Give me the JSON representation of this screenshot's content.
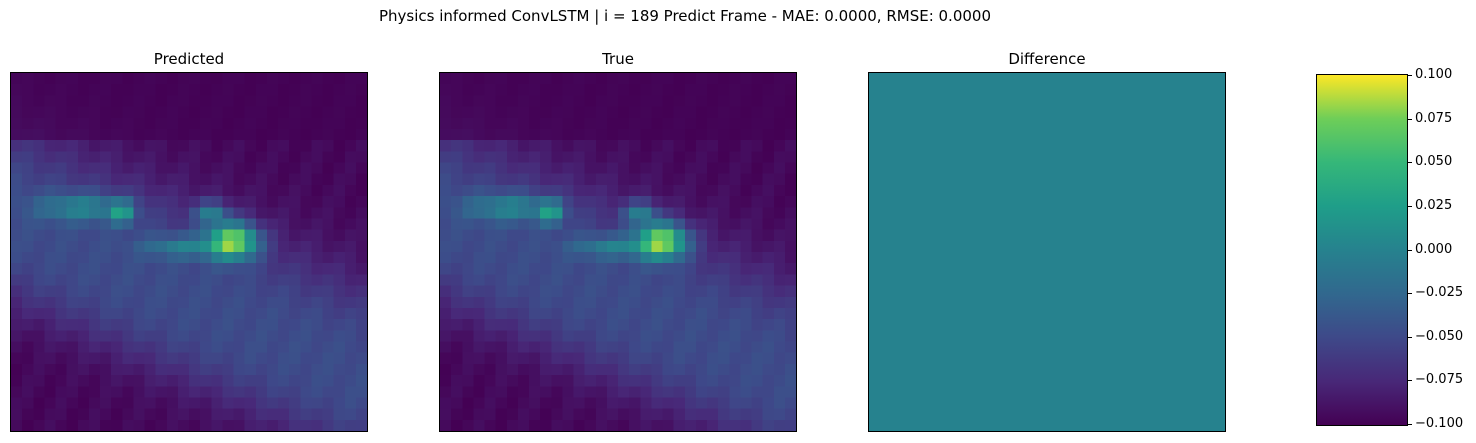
{
  "suptitle": "Physics informed ConvLSTM | i = 189 Predict Frame - MAE: 0.0000, RMSE: 0.0000",
  "panels": [
    {
      "title": "Predicted"
    },
    {
      "title": "True"
    },
    {
      "title": "Difference"
    }
  ],
  "colorbar": {
    "colormap": "viridis",
    "ticks": [
      "0.100",
      "0.075",
      "0.050",
      "0.025",
      "0.000",
      "−0.025",
      "−0.050",
      "−0.075",
      "−0.100"
    ]
  },
  "chart_data": {
    "type": "heatmap",
    "title": "Physics informed ConvLSTM | i = 189 Predict Frame - MAE: 0.0000, RMSE: 0.0000",
    "panels": [
      "Predicted",
      "True",
      "Difference"
    ],
    "metrics": {
      "MAE": 0.0,
      "RMSE": 0.0
    },
    "grid_size": [
      32,
      32
    ],
    "difference_value": 0.0,
    "colorbar_range": [
      -0.1,
      0.1
    ],
    "colorbar_ticks": [
      0.1,
      0.075,
      0.05,
      0.025,
      0.0,
      -0.025,
      -0.05,
      -0.075,
      -0.1
    ],
    "colors": {
      "low": "#440154",
      "mid": "#21918c",
      "high": "#fde725"
    }
  }
}
